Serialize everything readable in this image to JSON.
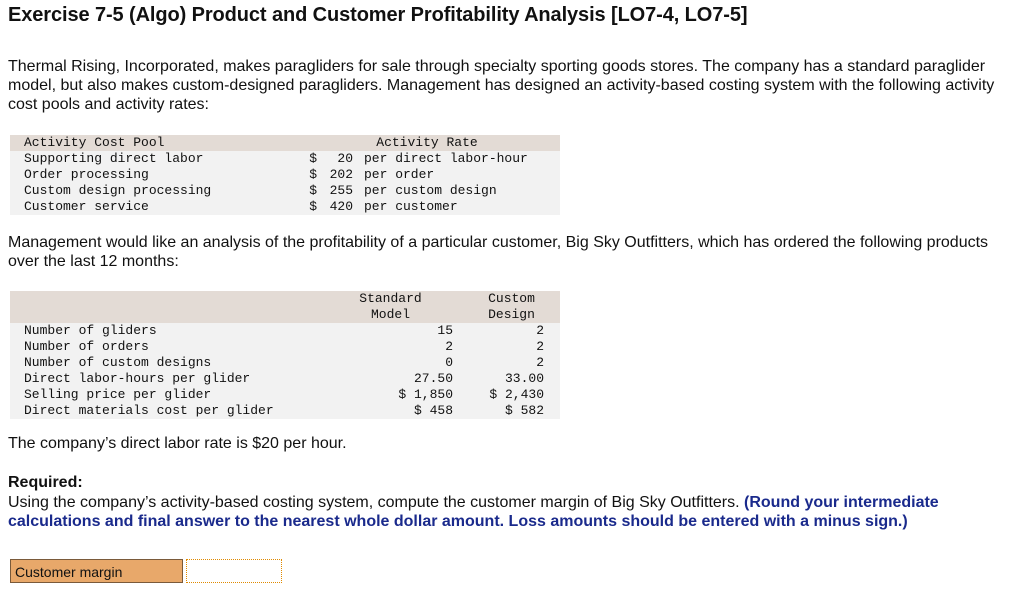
{
  "title": "Exercise 7-5 (Algo) Product and Customer Profitability Analysis [LO7-4, LO7-5]",
  "intro": "Thermal Rising, Incorporated, makes paragliders for sale through specialty sporting goods stores. The company has a standard paraglider model, but also makes custom-designed paragliders. Management has designed an activity-based costing system with the following activity cost pools and activity rates:",
  "rates_table": {
    "headers": [
      "Activity Cost Pool",
      "Activity Rate"
    ],
    "rows": [
      {
        "pool": "Supporting direct labor",
        "currency": "$",
        "rate": "20",
        "unit": "per direct labor-hour"
      },
      {
        "pool": "Order processing",
        "currency": "$",
        "rate": "202",
        "unit": "per order"
      },
      {
        "pool": "Custom design processing",
        "currency": "$",
        "rate": "255",
        "unit": "per custom design"
      },
      {
        "pool": "Customer service",
        "currency": "$",
        "rate": "420",
        "unit": "per customer"
      }
    ]
  },
  "para2": "Management would like an analysis of the profitability of a particular customer, Big Sky Outfitters, which has ordered the following products over the last 12 months:",
  "products_table": {
    "col_headers": [
      [
        "Standard",
        "Model"
      ],
      [
        "Custom",
        "Design"
      ]
    ],
    "rows": [
      {
        "label": "Number of gliders",
        "standard": "15",
        "custom": "2"
      },
      {
        "label": "Number of orders",
        "standard": "2",
        "custom": "2"
      },
      {
        "label": "Number of custom designs",
        "standard": "0",
        "custom": "2"
      },
      {
        "label": "Direct labor-hours per glider",
        "standard": "27.50",
        "custom": "33.00"
      },
      {
        "label": "Selling price per glider",
        "standard": "$ 1,850",
        "custom": "$ 2,430"
      },
      {
        "label": "Direct materials cost per glider",
        "standard": "$ 458",
        "custom": "$ 582"
      }
    ]
  },
  "para3": "The company’s direct labor rate is $20 per hour.",
  "required_heading": "Required:",
  "required_text": "Using the company’s activity-based costing system, compute the customer margin of Big Sky Outfitters.",
  "required_note": "(Round your intermediate calculations and final answer to the nearest whole dollar amount. Loss amounts should be entered with a minus sign.)",
  "answer": {
    "label": "Customer margin",
    "value": ""
  }
}
